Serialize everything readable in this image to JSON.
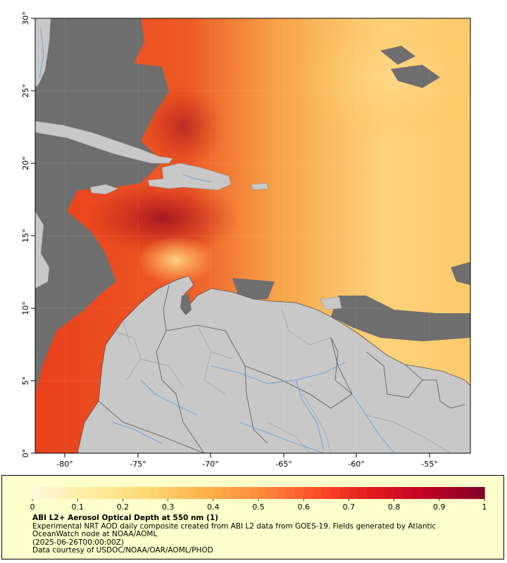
{
  "map": {
    "x_axis_labels": [
      "-80°",
      "-75°",
      "-70°",
      "-65°",
      "-60°",
      "-55°"
    ],
    "y_axis_labels": [
      "0°",
      "5°",
      "10°",
      "15°",
      "20°",
      "25°",
      "30°"
    ],
    "lon_range": [
      -82,
      -52
    ],
    "lat_range": [
      0,
      30
    ],
    "colors": {
      "land": "#c8c8c8",
      "no_data": "#6e6e6e",
      "border": "#555555",
      "rivers": "#6a9fd4"
    }
  },
  "legend": {
    "ticks": [
      "0",
      "0.1",
      "0.2",
      "0.3",
      "0.4",
      "0.5",
      "0.6",
      "0.7",
      "0.8",
      "0.9",
      "1"
    ],
    "range": [
      0,
      1
    ],
    "colormap": [
      "#fff7dc",
      "#ffeda0",
      "#fed976",
      "#feb24c",
      "#fd8d3c",
      "#fc4e2a",
      "#e31a1c",
      "#bd0026",
      "#800026"
    ],
    "title": "ABI L2+ Aerosol Optical Depth at 550 nm (1)",
    "line1": "Experimental NRT AOD daily composite created from ABI L2 data from GOES-19. Fields generated by Atlantic",
    "line2": "OceanWatch node at NOAA/AOML",
    "line3": "(2025-06-26T00:00:00Z)",
    "line4": "Data courtesy of USDOC/NOAA/OAR/AOML/PHOD",
    "panel_color": "#ffffcc"
  }
}
